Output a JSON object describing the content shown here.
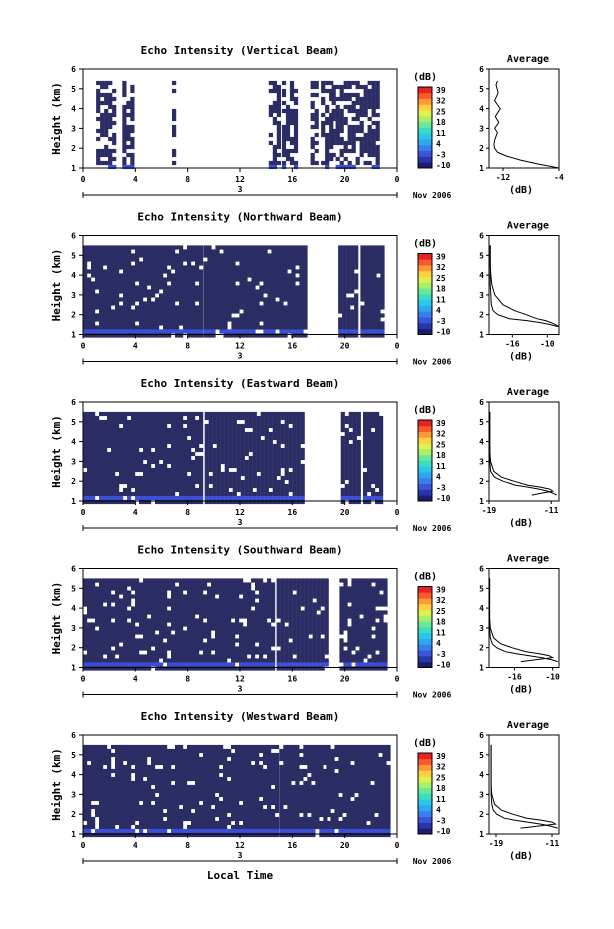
{
  "figure": {
    "xlabel": "Local Time",
    "date_label": "Nov 2006",
    "day_label": "3"
  },
  "colors": {
    "dominant_echo": "#2b2d64",
    "strong_echo": "#3a4fd6",
    "colorbar": [
      "#1a1d6e",
      "#2936a8",
      "#3a55d8",
      "#3a7ee8",
      "#2ea6f0",
      "#29c8e8",
      "#3bdcc0",
      "#6ae89a",
      "#a8f06a",
      "#e0f050",
      "#ffd040",
      "#ff9838",
      "#f85a2c",
      "#e82222"
    ]
  },
  "chart_data": [
    {
      "type": "heatmap",
      "title": "Echo Intensity (Vertical Beam)",
      "xlabel": "",
      "ylabel": "Height (km)",
      "xlim": [
        0,
        24
      ],
      "ylim": [
        1,
        6
      ],
      "xticks": [
        "0",
        "4",
        "8",
        "12",
        "16",
        "20",
        "0"
      ],
      "yticks": [
        "1",
        "2",
        "3",
        "4",
        "5",
        "6"
      ],
      "colorbar": {
        "label": "(dB)",
        "ticks": [
          "39",
          "32",
          "25",
          "18",
          "11",
          "4",
          "-3",
          "-10"
        ],
        "range": [
          -10,
          39
        ]
      },
      "coverage": "sparse",
      "fill_segments": [
        [
          1.0,
          2.3
        ],
        [
          3.0,
          3.9
        ],
        [
          6.8,
          7.0
        ],
        [
          14.2,
          15.0
        ],
        [
          15.2,
          16.4
        ],
        [
          17.4,
          17.8
        ],
        [
          18.2,
          18.9
        ],
        [
          19.0,
          22.6
        ]
      ],
      "top_km": 5.4,
      "average": {
        "title": "Average",
        "xlabel": "(dB)",
        "xlim": [
          -14,
          -4
        ],
        "xticks": [
          "-12",
          "-4"
        ],
        "yticks": [
          "1",
          "2",
          "3",
          "4",
          "5",
          "6"
        ],
        "height": [
          1.0,
          1.2,
          1.4,
          1.6,
          1.8,
          2.0,
          2.2,
          2.4,
          2.6,
          2.8,
          3.0,
          3.3,
          3.6,
          4.0,
          4.4,
          4.8,
          5.2,
          5.4
        ],
        "curves": [
          [
            -4.0,
            -7.0,
            -9.5,
            -11.5,
            -12.8,
            -13.2,
            -13.3,
            -13.2,
            -13.0,
            -12.8,
            -13.2,
            -12.6,
            -13.1,
            -12.4,
            -13.2,
            -12.7,
            -13.0,
            -12.8
          ]
        ]
      }
    },
    {
      "type": "heatmap",
      "title": "Echo Intensity (Northward Beam)",
      "xlabel": "",
      "ylabel": "Height (km)",
      "xlim": [
        0,
        24
      ],
      "ylim": [
        1,
        6
      ],
      "xticks": [
        "0",
        "4",
        "8",
        "12",
        "16",
        "20",
        "0"
      ],
      "yticks": [
        "1",
        "2",
        "3",
        "4",
        "5",
        "6"
      ],
      "colorbar": {
        "label": "(dB)",
        "ticks": [
          "39",
          "32",
          "25",
          "18",
          "11",
          "4",
          "-3",
          "-10"
        ],
        "range": [
          -10,
          39
        ]
      },
      "coverage": "dense",
      "fill_segments": [
        [
          0.0,
          8.9
        ],
        [
          9.2,
          14.2
        ],
        [
          14.4,
          16.9
        ],
        [
          19.5,
          21.0
        ],
        [
          21.2,
          23.0
        ]
      ],
      "top_km": 5.5,
      "average": {
        "title": "Average",
        "xlabel": "(dB)",
        "xlim": [
          -20,
          -8
        ],
        "xticks": [
          "-16",
          "-10"
        ],
        "yticks": [
          "1",
          "2",
          "3",
          "4",
          "5",
          "6"
        ],
        "height": [
          1.4,
          1.5,
          1.6,
          1.7,
          1.8,
          2.0,
          2.2,
          2.5,
          3.0,
          3.5,
          4.0,
          4.5,
          5.0,
          5.5
        ],
        "curves": [
          [
            -8.2,
            -9.5,
            -11.2,
            -13.5,
            -16.5,
            -18.5,
            -19.3,
            -19.6,
            -19.7,
            -19.8,
            -19.8,
            -19.8,
            -19.8,
            -19.8
          ],
          [
            -8.0,
            -8.6,
            -9.4,
            -10.3,
            -11.8,
            -13.6,
            -15.6,
            -17.6,
            -19.0,
            -19.5,
            -19.7,
            -19.8,
            -19.8,
            -19.8
          ]
        ]
      }
    },
    {
      "type": "heatmap",
      "title": "Echo Intensity (Eastward Beam)",
      "xlabel": "",
      "ylabel": "Height (km)",
      "xlim": [
        0,
        24
      ],
      "ylim": [
        1,
        6
      ],
      "xticks": [
        "0",
        "4",
        "8",
        "12",
        "16",
        "20",
        "0"
      ],
      "yticks": [
        "1",
        "2",
        "3",
        "4",
        "5",
        "6"
      ],
      "colorbar": {
        "label": "(dB)",
        "ticks": [
          "39",
          "32",
          "25",
          "18",
          "11",
          "4",
          "-3",
          "-10"
        ],
        "range": [
          -10,
          39
        ]
      },
      "coverage": "dense",
      "fill_segments": [
        [
          0.0,
          9.0
        ],
        [
          9.3,
          14.6
        ],
        [
          14.8,
          16.8
        ],
        [
          19.7,
          21.2
        ],
        [
          21.4,
          22.8
        ]
      ],
      "top_km": 5.5,
      "average": {
        "title": "Average",
        "xlabel": "(dB)",
        "xlim": [
          -19,
          -10
        ],
        "xticks": [
          "-19",
          "-11"
        ],
        "yticks": [
          "1",
          "2",
          "3",
          "4",
          "5",
          "6"
        ],
        "height": [
          1.3,
          1.4,
          1.5,
          1.6,
          1.7,
          1.8,
          2.0,
          2.2,
          2.5,
          3.0,
          3.5,
          4.0,
          4.5,
          5.0,
          5.5
        ],
        "curves": [
          [
            -10.3,
            -10.8,
            -11.5,
            -12.6,
            -14.0,
            -15.6,
            -17.2,
            -18.3,
            -18.8,
            -18.9,
            -18.9,
            -18.9,
            -18.9,
            -18.9,
            -18.9
          ],
          [
            -13.5,
            -12.2,
            -10.8,
            -11.2,
            -12.4,
            -14.0,
            -15.8,
            -17.4,
            -18.4,
            -18.8,
            -18.9,
            -18.9,
            -18.9,
            -18.9,
            -18.9
          ]
        ]
      }
    },
    {
      "type": "heatmap",
      "title": "Echo Intensity (Southward Beam)",
      "xlabel": "",
      "ylabel": "Height (km)",
      "xlim": [
        0,
        24
      ],
      "ylim": [
        1,
        6
      ],
      "xticks": [
        "0",
        "4",
        "8",
        "12",
        "16",
        "20",
        "0"
      ],
      "yticks": [
        "1",
        "2",
        "3",
        "4",
        "5",
        "6"
      ],
      "colorbar": {
        "label": "(dB)",
        "ticks": [
          "39",
          "32",
          "25",
          "18",
          "11",
          "4",
          "-3",
          "-10"
        ],
        "range": [
          -10,
          39
        ]
      },
      "coverage": "dense",
      "fill_segments": [
        [
          0.0,
          14.6
        ],
        [
          14.8,
          18.6
        ],
        [
          19.6,
          23.2
        ]
      ],
      "top_km": 5.5,
      "average": {
        "title": "Average",
        "xlabel": "(dB)",
        "xlim": [
          -20,
          -9
        ],
        "xticks": [
          "-16",
          "-10"
        ],
        "yticks": [
          "1",
          "2",
          "3",
          "4",
          "5",
          "6"
        ],
        "height": [
          1.3,
          1.4,
          1.5,
          1.6,
          1.7,
          1.8,
          2.0,
          2.2,
          2.5,
          3.0,
          3.5,
          4.0,
          4.5,
          5.0,
          5.5
        ],
        "curves": [
          [
            -9.2,
            -10.2,
            -11.8,
            -13.8,
            -15.8,
            -17.4,
            -18.8,
            -19.5,
            -19.8,
            -19.9,
            -19.9,
            -19.9,
            -19.9,
            -19.9,
            -19.9
          ],
          [
            -15.0,
            -12.5,
            -10.0,
            -10.6,
            -12.2,
            -14.2,
            -16.4,
            -18.2,
            -19.3,
            -19.8,
            -19.9,
            -19.9,
            -19.9,
            -19.9,
            -19.9
          ]
        ]
      }
    },
    {
      "type": "heatmap",
      "title": "Echo Intensity (Westward Beam)",
      "xlabel": "",
      "ylabel": "Height (km)",
      "xlim": [
        0,
        24
      ],
      "ylim": [
        1,
        6
      ],
      "xticks": [
        "0",
        "4",
        "8",
        "12",
        "16",
        "20",
        "0"
      ],
      "yticks": [
        "1",
        "2",
        "3",
        "4",
        "5",
        "6"
      ],
      "colorbar": {
        "label": "(dB)",
        "ticks": [
          "39",
          "32",
          "25",
          "18",
          "11",
          "4",
          "-3",
          "-10"
        ],
        "range": [
          -10,
          39
        ]
      },
      "coverage": "dense",
      "fill_segments": [
        [
          0.0,
          14.8
        ],
        [
          15.0,
          18.4
        ],
        [
          18.6,
          23.3
        ]
      ],
      "top_km": 5.5,
      "average": {
        "title": "Average",
        "xlabel": "(dB)",
        "xlim": [
          -20,
          -10
        ],
        "xticks": [
          "-19",
          "-11"
        ],
        "yticks": [
          "1",
          "2",
          "3",
          "4",
          "5",
          "6"
        ],
        "height": [
          1.3,
          1.4,
          1.5,
          1.6,
          1.7,
          1.8,
          2.0,
          2.2,
          2.5,
          3.0,
          3.5,
          4.0,
          4.5,
          5.0,
          5.5
        ],
        "curves": [
          [
            -10.2,
            -11.2,
            -12.6,
            -14.5,
            -16.4,
            -17.8,
            -18.9,
            -19.4,
            -19.6,
            -19.7,
            -19.7,
            -19.7,
            -19.7,
            -19.7,
            -19.7
          ],
          [
            -15.5,
            -13.0,
            -10.5,
            -11.0,
            -12.6,
            -14.6,
            -16.6,
            -18.2,
            -19.2,
            -19.6,
            -19.7,
            -19.7,
            -19.7,
            -19.7,
            -19.7
          ]
        ]
      }
    }
  ]
}
